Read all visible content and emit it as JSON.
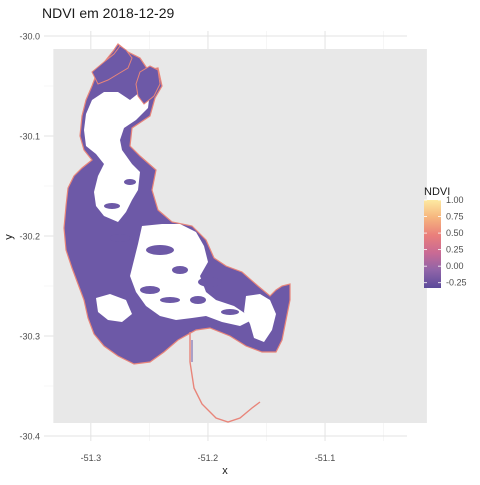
{
  "chart_data": {
    "type": "heatmap",
    "title": "NDVI em 2018-12-29",
    "xlabel": "x",
    "ylabel": "y",
    "xlim": [
      -51.34,
      -51.03
    ],
    "ylim": [
      -30.405,
      -29.995
    ],
    "x_ticks": [
      -51.3,
      -51.2,
      -51.1
    ],
    "x_tick_labels": [
      "-51.3",
      "-51.2",
      "-51.1"
    ],
    "y_ticks": [
      -30.0,
      -30.1,
      -30.2,
      -30.3,
      -30.4
    ],
    "y_tick_labels": [
      "-30.0",
      "-30.1",
      "-30.2",
      "-30.3",
      "-30.4"
    ],
    "raster_extent": {
      "x": [
        -51.332,
        -51.013
      ],
      "y": [
        -30.387,
        -30.013
      ]
    },
    "grid": true,
    "panel_background": "#e8e8e8",
    "legend": {
      "title": "NDVI",
      "position": "right",
      "breaks": [
        1.0,
        0.75,
        0.5,
        0.25,
        0.0,
        -0.25
      ],
      "labels": [
        "1.00",
        "0.75",
        "0.50",
        "0.25",
        "0.00",
        "-0.25"
      ],
      "range": [
        -0.33,
        1.0
      ],
      "palette": [
        "#fde9a1",
        "#f6b57e",
        "#ea7f7b",
        "#c96a94",
        "#8f64a8",
        "#5a4a9a"
      ]
    },
    "water_fill": "#6d59a7",
    "edge_color": "#e8857a"
  }
}
